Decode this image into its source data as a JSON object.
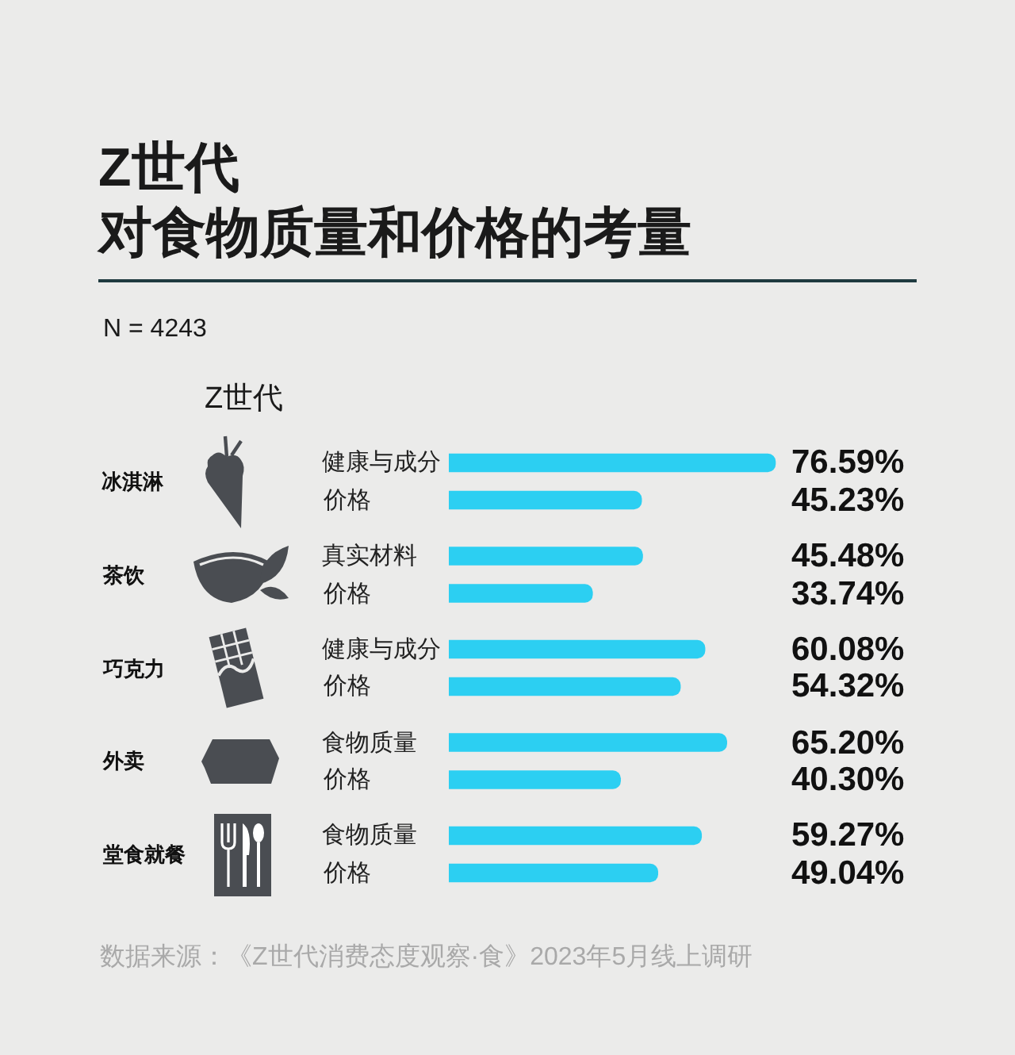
{
  "chart_data": {
    "type": "bar",
    "orientation": "horizontal",
    "title": "Z世代",
    "subtitle": "对食物质量和价格的考量",
    "ylabel": "Z世代",
    "categories": [
      "健康与成分",
      "价格",
      "真实材料",
      "价格",
      "健康与成分",
      "价格",
      "食物质量",
      "价格",
      "食物质量",
      "价格"
    ],
    "values": [
      76.59,
      45.23,
      45.48,
      33.74,
      60.08,
      54.32,
      65.2,
      40.3,
      59.27,
      49.04
    ],
    "value_labels": [
      "76.59%",
      "45.23%",
      "45.48%",
      "33.74%",
      "60.08%",
      "54.32%",
      "65.20%",
      "40.30%",
      "59.27%",
      "49.04%"
    ],
    "color": "#2ccff2",
    "annotations": [
      "N = 4243",
      "冰淇淋",
      "茶饮",
      "巧克力",
      "外卖",
      "堂食就餐",
      "数据来源：《Z世代消费态度观察·食》2023年5月线上调研"
    ]
  }
}
